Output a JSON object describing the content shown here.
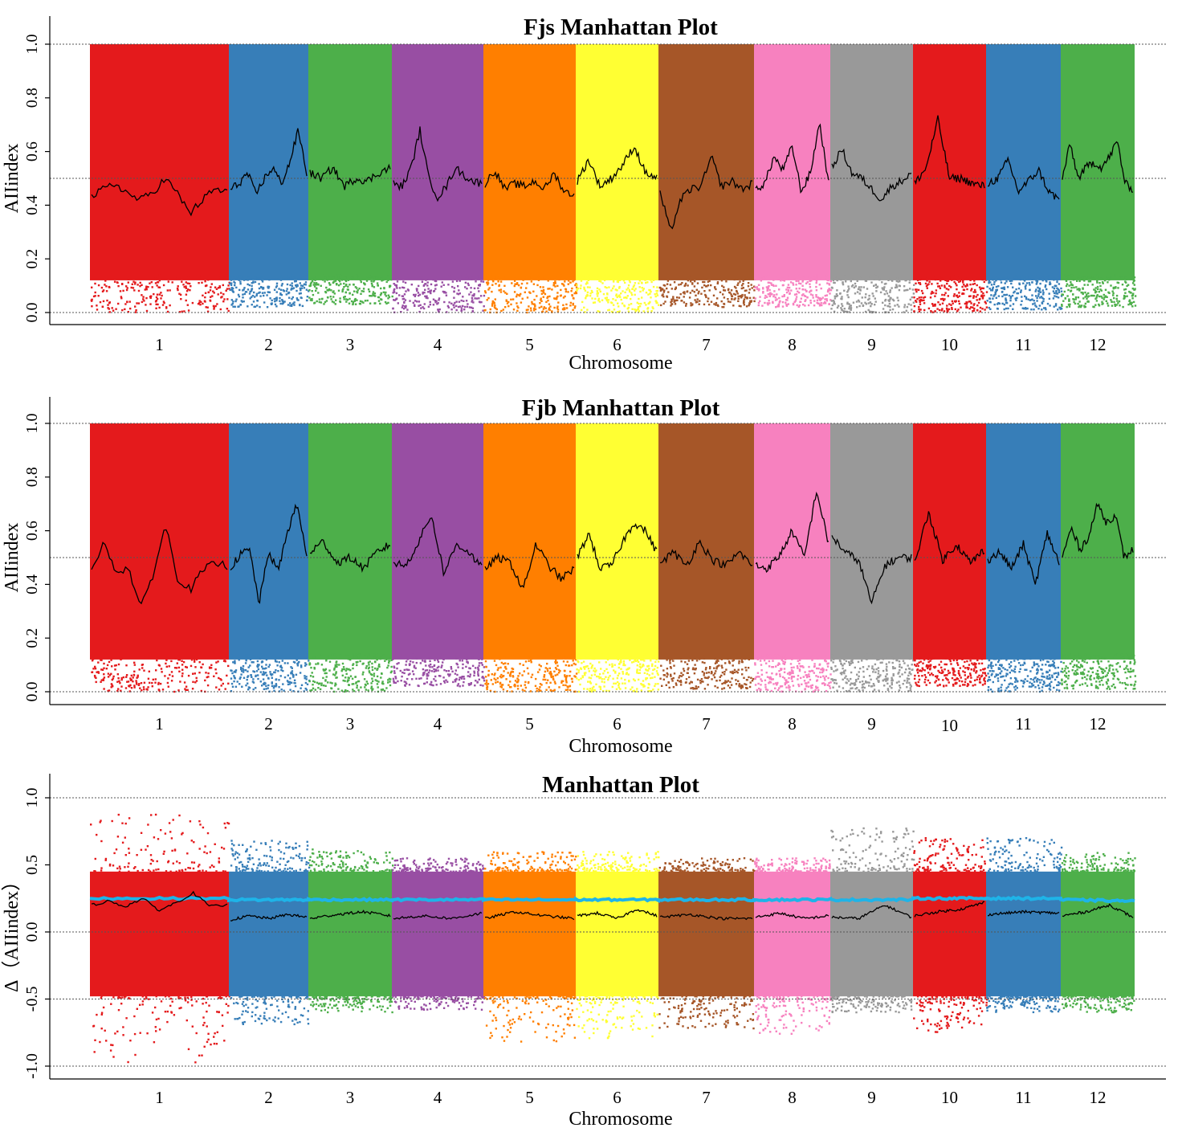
{
  "palette": [
    "#e41a1c",
    "#377eb8",
    "#4daf4a",
    "#984ea3",
    "#ff7f00",
    "#ffff33",
    "#a65628",
    "#f781bf",
    "#999999"
  ],
  "chart_data": [
    {
      "type": "scatter",
      "title": "Fjs Manhattan Plot",
      "xlabel": "Chromosome",
      "ylabel": "AIIindex",
      "ylim": [
        0,
        1
      ],
      "yticks": [
        "0.0",
        "0.2",
        "0.4",
        "0.6",
        "0.8",
        "1.0"
      ],
      "dashed_reference_lines": [
        0,
        0.5,
        1
      ],
      "chromosomes": [
        "1",
        "2",
        "3",
        "4",
        "5",
        "6",
        "7",
        "8",
        "9",
        "10",
        "11",
        "12"
      ],
      "point_colors": [
        "#e41a1c",
        "#377eb8",
        "#4daf4a",
        "#984ea3",
        "#ff7f00",
        "#ffff33",
        "#a65628",
        "#f781bf",
        "#999999",
        "#e41a1c",
        "#377eb8",
        "#4daf4a"
      ],
      "point_range_per_chromosome": [
        [
          0,
          1
        ],
        [
          0.02,
          1
        ],
        [
          0.03,
          1
        ],
        [
          0,
          1
        ],
        [
          0,
          1
        ],
        [
          0,
          1
        ],
        [
          0.02,
          1
        ],
        [
          0.02,
          1
        ],
        [
          0,
          1
        ],
        [
          0,
          1
        ],
        [
          0.01,
          1
        ],
        [
          0.02,
          1
        ]
      ],
      "sliding_window_mean": {
        "color": "#000000",
        "values_per_chromosome": [
          [
            0.43,
            0.46,
            0.48,
            0.44,
            0.42,
            0.45,
            0.5,
            0.44,
            0.37,
            0.42,
            0.46,
            0.45
          ],
          [
            0.46,
            0.48,
            0.52,
            0.44,
            0.5,
            0.54,
            0.48,
            0.56,
            0.68,
            0.52
          ],
          [
            0.52,
            0.5,
            0.54,
            0.47,
            0.5,
            0.49,
            0.52,
            0.54
          ],
          [
            0.48,
            0.47,
            0.54,
            0.68,
            0.5,
            0.43,
            0.47,
            0.54,
            0.51,
            0.49,
            0.48
          ],
          [
            0.48,
            0.53,
            0.46,
            0.48,
            0.47,
            0.49,
            0.46,
            0.52,
            0.45,
            0.44
          ],
          [
            0.49,
            0.57,
            0.47,
            0.5,
            0.55,
            0.62,
            0.52,
            0.5
          ],
          [
            0.45,
            0.3,
            0.42,
            0.46,
            0.47,
            0.58,
            0.47,
            0.49,
            0.46,
            0.48
          ],
          [
            0.46,
            0.48,
            0.58,
            0.53,
            0.62,
            0.45,
            0.52,
            0.71,
            0.48
          ],
          [
            0.54,
            0.61,
            0.52,
            0.5,
            0.46,
            0.42,
            0.47,
            0.49,
            0.52
          ],
          [
            0.48,
            0.54,
            0.72,
            0.5,
            0.5,
            0.48,
            0.47
          ],
          [
            0.48,
            0.5,
            0.57,
            0.45,
            0.49,
            0.53,
            0.45,
            0.42
          ],
          [
            0.5,
            0.63,
            0.5,
            0.54,
            0.56,
            0.54,
            0.58,
            0.64,
            0.48,
            0.46
          ]
        ]
      }
    },
    {
      "type": "scatter",
      "title": "Fjb Manhattan Plot",
      "xlabel": "Chromosome",
      "ylabel": "AIIindex",
      "ylim": [
        0,
        1
      ],
      "yticks": [
        "0.0",
        "0.2",
        "0.4",
        "0.6",
        "0.8",
        "1.0"
      ],
      "dashed_reference_lines": [
        0,
        0.5,
        1
      ],
      "chromosomes": [
        "1",
        "2",
        "3",
        "4",
        "5",
        "6",
        "7",
        "8",
        "9",
        "10",
        "11",
        "12"
      ],
      "point_colors": [
        "#e41a1c",
        "#377eb8",
        "#4daf4a",
        "#984ea3",
        "#ff7f00",
        "#ffff33",
        "#a65628",
        "#f781bf",
        "#999999",
        "#e41a1c",
        "#377eb8",
        "#4daf4a"
      ],
      "point_range_per_chromosome": [
        [
          0,
          1
        ],
        [
          0,
          1
        ],
        [
          0,
          1
        ],
        [
          0.02,
          1
        ],
        [
          0,
          1
        ],
        [
          0,
          1
        ],
        [
          0.01,
          1
        ],
        [
          0,
          1
        ],
        [
          0,
          1
        ],
        [
          0.02,
          1
        ],
        [
          0,
          1
        ],
        [
          0.01,
          1
        ]
      ],
      "sliding_window_mean": {
        "color": "#000000",
        "values_per_chromosome": [
          [
            0.47,
            0.55,
            0.45,
            0.46,
            0.31,
            0.44,
            0.62,
            0.42,
            0.38,
            0.45,
            0.48,
            0.47
          ],
          [
            0.46,
            0.51,
            0.53,
            0.33,
            0.52,
            0.45,
            0.6,
            0.7,
            0.5
          ],
          [
            0.52,
            0.56,
            0.48,
            0.5,
            0.46,
            0.52,
            0.55
          ],
          [
            0.48,
            0.47,
            0.56,
            0.66,
            0.44,
            0.55,
            0.52,
            0.46
          ],
          [
            0.46,
            0.5,
            0.48,
            0.38,
            0.55,
            0.47,
            0.42,
            0.46
          ],
          [
            0.5,
            0.59,
            0.46,
            0.47,
            0.56,
            0.63,
            0.6,
            0.52
          ],
          [
            0.48,
            0.52,
            0.47,
            0.56,
            0.49,
            0.47,
            0.52,
            0.47
          ],
          [
            0.47,
            0.46,
            0.51,
            0.6,
            0.5,
            0.75,
            0.55
          ],
          [
            0.58,
            0.52,
            0.49,
            0.33,
            0.47,
            0.5,
            0.5
          ],
          [
            0.48,
            0.67,
            0.49,
            0.55,
            0.48,
            0.53
          ],
          [
            0.49,
            0.52,
            0.46,
            0.55,
            0.4,
            0.59,
            0.48
          ],
          [
            0.5,
            0.61,
            0.53,
            0.58,
            0.7,
            0.63,
            0.66,
            0.5,
            0.53
          ]
        ]
      }
    },
    {
      "type": "scatter",
      "title": "Manhattan Plot",
      "xlabel": "Chromosome",
      "ylabel": "Δ（AIIindex）",
      "ylim": [
        -1,
        1
      ],
      "yticks": [
        "-1.0",
        "-0.5",
        "0.0",
        "0.5",
        "1.0"
      ],
      "dashed_reference_lines": [
        -1,
        -0.5,
        0,
        1
      ],
      "chromosomes": [
        "1",
        "2",
        "3",
        "4",
        "5",
        "6",
        "7",
        "8",
        "9",
        "10",
        "11",
        "12"
      ],
      "point_colors": [
        "#e41a1c",
        "#377eb8",
        "#4daf4a",
        "#984ea3",
        "#ff7f00",
        "#ffff33",
        "#a65628",
        "#f781bf",
        "#999999",
        "#e41a1c",
        "#377eb8",
        "#4daf4a"
      ],
      "point_range_per_chromosome": [
        [
          -0.98,
          0.88
        ],
        [
          -0.7,
          0.68
        ],
        [
          -0.6,
          0.62
        ],
        [
          -0.58,
          0.55
        ],
        [
          -0.82,
          0.6
        ],
        [
          -0.8,
          0.6
        ],
        [
          -0.72,
          0.55
        ],
        [
          -0.76,
          0.55
        ],
        [
          -0.6,
          0.78
        ],
        [
          -0.75,
          0.7
        ],
        [
          -0.6,
          0.7
        ],
        [
          -0.6,
          0.6
        ]
      ],
      "sliding_window_mean": {
        "color": "#000000",
        "values_per_chromosome": [
          [
            0.2,
            0.23,
            0.19,
            0.25,
            0.16,
            0.22,
            0.29,
            0.19,
            0.2
          ],
          [
            0.09,
            0.12,
            0.1,
            0.13,
            0.11
          ],
          [
            0.1,
            0.13,
            0.15,
            0.12
          ],
          [
            0.1,
            0.12,
            0.1,
            0.14
          ],
          [
            0.1,
            0.15,
            0.12,
            0.1
          ],
          [
            0.12,
            0.14,
            0.1,
            0.17,
            0.12
          ],
          [
            0.11,
            0.13,
            0.1,
            0.1
          ],
          [
            0.11,
            0.14,
            0.1,
            0.12
          ],
          [
            0.11,
            0.1,
            0.2,
            0.11
          ],
          [
            0.12,
            0.15,
            0.17,
            0.22
          ],
          [
            0.13,
            0.15,
            0.14
          ],
          [
            0.12,
            0.15,
            0.2,
            0.11
          ]
        ]
      },
      "threshold_line": {
        "color": "#1eb4e8",
        "values_per_chromosome": [
          [
            0.25,
            0.25
          ],
          [
            0.24,
            0.24
          ],
          [
            0.24,
            0.24
          ],
          [
            0.24,
            0.24
          ],
          [
            0.24,
            0.24
          ],
          [
            0.24,
            0.24
          ],
          [
            0.24,
            0.24
          ],
          [
            0.24,
            0.24
          ],
          [
            0.24,
            0.24
          ],
          [
            0.25,
            0.25
          ],
          [
            0.25,
            0.25
          ],
          [
            0.24,
            0.23
          ]
        ]
      }
    }
  ]
}
